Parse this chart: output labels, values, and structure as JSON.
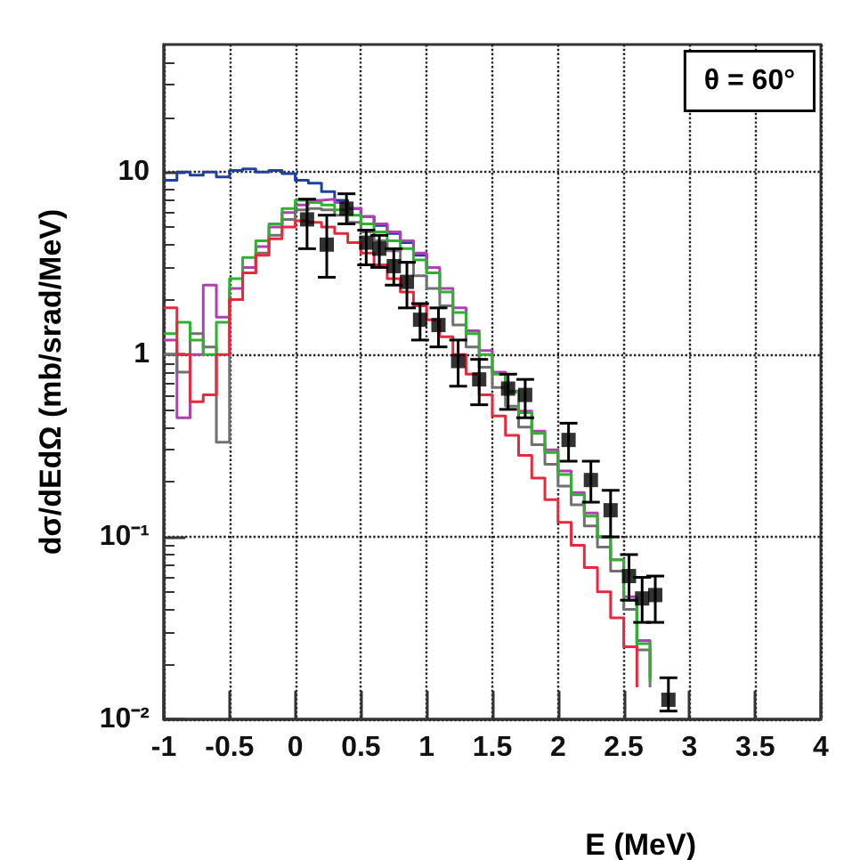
{
  "chart_data": {
    "type": "step",
    "xlabel": "E (MeV)",
    "ylabel": "dσ/dEdΩ (mb/srad/MeV)",
    "annotations": [
      "θ = 60°"
    ],
    "x": [
      -1.0,
      -0.9,
      -0.8,
      -0.7,
      -0.6,
      -0.5,
      -0.4,
      -0.3,
      -0.2,
      -0.1,
      0.0,
      0.1,
      0.2,
      0.3,
      0.4,
      0.5,
      0.6,
      0.7,
      0.8,
      0.9,
      1.0,
      1.1,
      1.2,
      1.3,
      1.4,
      1.5,
      1.6,
      1.7,
      1.8,
      1.9,
      2.0,
      2.1,
      2.2,
      2.3,
      2.4,
      2.5,
      2.6,
      2.7
    ],
    "series": [
      {
        "color": "#2040a0",
        "x": [
          -1.0,
          -0.9,
          -0.8,
          -0.7,
          -0.6,
          -0.5,
          -0.4,
          -0.3,
          -0.2,
          -0.1,
          0.0,
          0.1,
          0.2,
          0.3,
          0.4,
          0.5,
          0.6,
          0.7,
          0.8,
          0.9,
          1.0
        ],
        "values": [
          9.0,
          10.0,
          9.6,
          10.0,
          9.4,
          10.2,
          10.4,
          10.0,
          10.2,
          9.8,
          9.0,
          8.7,
          7.8,
          7.0,
          6.3,
          5.7,
          5.1,
          4.6,
          4.1,
          3.5,
          2.9
        ]
      },
      {
        "color": "#b040b0",
        "values": [
          1.2,
          0.45,
          1.0,
          2.4,
          1.6,
          2.3,
          3.0,
          3.9,
          5.0,
          6.0,
          6.6,
          7.0,
          7.1,
          6.8,
          6.3,
          5.7,
          5.2,
          4.7,
          4.2,
          3.6,
          3.0,
          2.3,
          1.8,
          1.35,
          1.05,
          0.8,
          0.63,
          0.49,
          0.38,
          0.3,
          0.23,
          0.175,
          0.135,
          0.1,
          0.075,
          0.047,
          0.027,
          0.017
        ]
      },
      {
        "color": "#707070",
        "values": [
          1.0,
          0.8,
          1.3,
          1.1,
          0.33,
          2.0,
          2.8,
          3.6,
          4.5,
          5.5,
          6.2,
          6.3,
          6.2,
          5.8,
          5.3,
          4.7,
          4.2,
          3.7,
          3.2,
          2.7,
          2.3,
          1.85,
          1.45,
          1.1,
          0.85,
          0.66,
          0.52,
          0.4,
          0.32,
          0.25,
          0.19,
          0.15,
          0.115,
          0.088,
          0.065,
          0.04,
          0.024,
          0.015
        ]
      },
      {
        "color": "#30b030",
        "values": [
          1.3,
          1.5,
          1.2,
          1.0,
          1.5,
          2.6,
          3.4,
          4.2,
          5.2,
          6.3,
          7.0,
          6.8,
          6.6,
          6.2,
          5.8,
          5.2,
          4.7,
          4.2,
          3.8,
          3.3,
          2.8,
          2.2,
          1.7,
          1.3,
          1.0,
          0.78,
          0.62,
          0.48,
          0.37,
          0.29,
          0.22,
          0.17,
          0.13,
          0.1,
          0.075,
          0.045,
          0.026,
          0.016
        ]
      },
      {
        "color": "#e8283c",
        "x": [
          -1.0,
          -0.9,
          -0.8,
          -0.7,
          -0.6,
          -0.5,
          -0.4,
          -0.3,
          -0.2,
          -0.1,
          0.0,
          0.1,
          0.2,
          0.3,
          0.4,
          0.5,
          0.6,
          0.7,
          0.8,
          0.9,
          1.0,
          1.1,
          1.2,
          1.3,
          1.4,
          1.5,
          1.6,
          1.7,
          1.8,
          1.9,
          2.0,
          2.1,
          2.2,
          2.3,
          2.4,
          2.5,
          2.6
        ],
        "values": [
          1.8,
          1.0,
          0.55,
          0.6,
          1.0,
          2.0,
          2.8,
          3.5,
          4.3,
          5.0,
          5.4,
          5.3,
          5.0,
          4.6,
          4.1,
          3.6,
          3.1,
          2.6,
          2.2,
          1.85,
          1.55,
          1.25,
          1.0,
          0.78,
          0.6,
          0.46,
          0.36,
          0.28,
          0.21,
          0.16,
          0.12,
          0.09,
          0.068,
          0.05,
          0.036,
          0.025,
          0.015
        ]
      },
      {
        "type": "scatter",
        "color": "#000000",
        "marker": "square",
        "x": [
          0.09,
          0.24,
          0.39,
          0.54,
          0.64,
          0.75,
          0.85,
          0.95,
          1.09,
          1.24,
          1.4,
          1.62,
          1.75,
          2.08,
          2.25,
          2.4,
          2.54,
          2.64,
          2.74,
          2.84
        ],
        "values": [
          5.5,
          4.0,
          6.3,
          4.1,
          3.8,
          3.05,
          2.5,
          1.55,
          1.45,
          0.92,
          0.73,
          0.65,
          0.6,
          0.34,
          0.205,
          0.14,
          0.061,
          0.046,
          0.048,
          0.0128
        ],
        "errors": [
          [
            3.8,
            7.1
          ],
          [
            2.65,
            5.8
          ],
          [
            5.2,
            7.6
          ],
          [
            3.1,
            4.8
          ],
          [
            3.0,
            4.5
          ],
          [
            2.4,
            3.8
          ],
          [
            1.8,
            3.2
          ],
          [
            1.2,
            1.9
          ],
          [
            1.1,
            1.8
          ],
          [
            0.67,
            1.2
          ],
          [
            0.53,
            0.94
          ],
          [
            0.5,
            0.78
          ],
          [
            0.45,
            0.73
          ],
          [
            0.26,
            0.42
          ],
          [
            0.155,
            0.26
          ],
          [
            0.1,
            0.18
          ],
          [
            0.045,
            0.08
          ],
          [
            0.034,
            0.06
          ],
          [
            0.034,
            0.061
          ],
          [
            0.0111,
            0.0169
          ]
        ]
      }
    ],
    "log": "y",
    "xlim": [
      -1,
      4
    ],
    "xticks": [
      -1,
      -0.5,
      0,
      0.5,
      1,
      1.5,
      2,
      2.5,
      3,
      3.5,
      4
    ],
    "ylim": [
      0.01,
      50
    ],
    "yticks": [
      {
        "value": 0.01,
        "label": "10⁻²"
      },
      {
        "value": 0.1,
        "label": "10⁻¹"
      },
      1,
      10
    ],
    "grid": true,
    "line_style": "solid"
  }
}
